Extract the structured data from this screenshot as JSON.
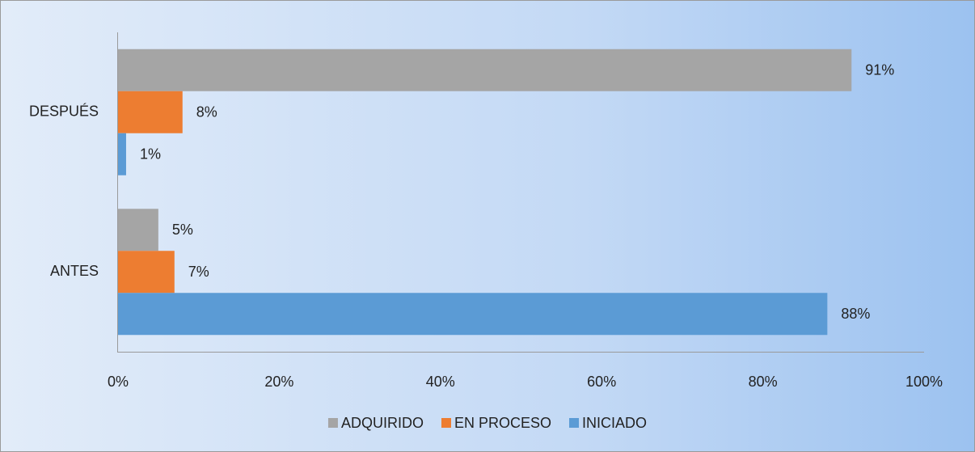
{
  "chart_data": {
    "type": "bar",
    "orientation": "horizontal",
    "categories": [
      "ANTES",
      "DESPUÉS"
    ],
    "series": [
      {
        "name": "ADQUIRIDO",
        "color": "#a5a5a5",
        "values": [
          5,
          91
        ],
        "value_labels": [
          "5%",
          "91%"
        ]
      },
      {
        "name": "EN PROCESO",
        "color": "#ed7d31",
        "values": [
          7,
          8
        ],
        "value_labels": [
          "7%",
          "8%"
        ]
      },
      {
        "name": "INICIADO",
        "color": "#5b9bd5",
        "values": [
          88,
          1
        ],
        "value_labels": [
          "88%",
          "1%"
        ]
      }
    ],
    "xlim": [
      0,
      100
    ],
    "xticks": [
      {
        "value": 0,
        "label": "0%"
      },
      {
        "value": 20,
        "label": "20%"
      },
      {
        "value": 40,
        "label": "40%"
      },
      {
        "value": 60,
        "label": "60%"
      },
      {
        "value": 80,
        "label": "80%"
      },
      {
        "value": 100,
        "label": "100%"
      }
    ],
    "grid": false,
    "legend": "bottom"
  }
}
